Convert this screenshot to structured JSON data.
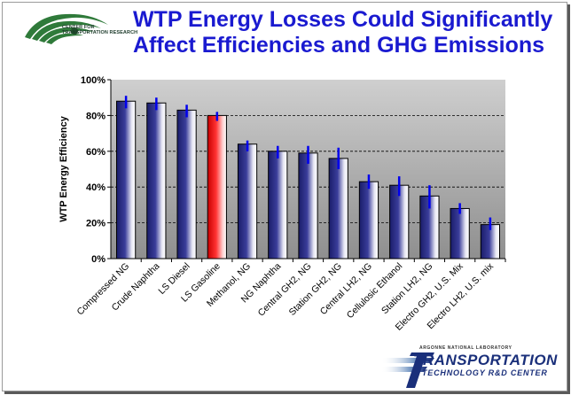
{
  "slide": {
    "title_line1": "WTP Energy Losses Could Significantly",
    "title_line2": "Affect Efficiencies and GHG Emissions",
    "logo_ctr_line1": "CENTER FOR",
    "logo_ctr_line2": "TRANSPORTATION RESEARCH",
    "logo_anl": "ARGONNE NATIONAL LABORATORY",
    "logo_trans_main": "TRANSPORTATION",
    "logo_trans_sub": "TECHNOLOGY R&D CENTER"
  },
  "colors": {
    "title": "#1a1ad0",
    "bar_fill_main": "#3a3d9a",
    "bar_fill_highlight": "#ff3333",
    "plot_bg_top": "#cfcfcf",
    "plot_bg_bottom": "#8f8f8f",
    "error_bar": "#0000ee"
  },
  "chart_data": {
    "type": "bar",
    "title": "",
    "xlabel": "",
    "ylabel": "WTP Energy Efficiency",
    "ylim": [
      0,
      100
    ],
    "y_ticks": [
      "0%",
      "20%",
      "40%",
      "60%",
      "80%",
      "100%"
    ],
    "y_tick_values": [
      0,
      20,
      40,
      60,
      80,
      100
    ],
    "grid": "horizontal dashed",
    "categories": [
      "Compressed NG",
      "Crude Naphtha",
      "LS Diesel",
      "LS Gasoline",
      "Methanol, NG",
      "NG Naphtha",
      "Central GH2, NG",
      "Station GH2, NG",
      "Central LH2, NG",
      "Cellulosic Ethanol",
      "Station LH2, NG",
      "Electro GH2, U.S. Mix",
      "Electro LH2, U.S. mix"
    ],
    "values": [
      88,
      87,
      83,
      80,
      64,
      60,
      59,
      56,
      43,
      41,
      35,
      28,
      19
    ],
    "error_low": [
      84,
      83,
      79,
      77,
      60,
      56,
      53,
      50,
      39,
      35,
      28,
      25,
      16
    ],
    "error_high": [
      91,
      90,
      86,
      82,
      66,
      63,
      63,
      62,
      47,
      46,
      41,
      31,
      23
    ],
    "highlight_index": 3
  }
}
